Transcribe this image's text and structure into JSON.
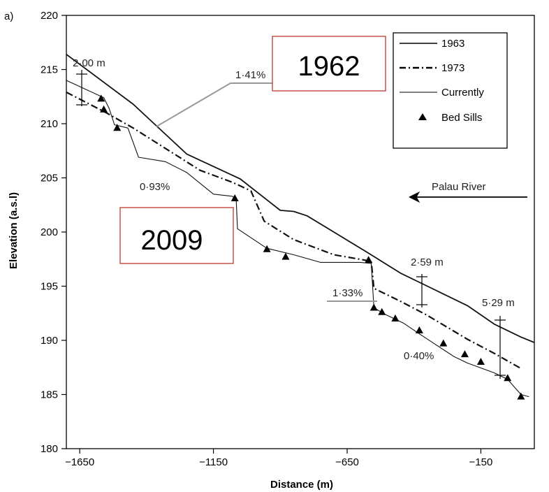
{
  "chart_data": {
    "type": "line",
    "panel_label": "a)",
    "xlabel": "Distance (m)",
    "ylabel": "Elevation (a.s.l)",
    "xlim": [
      -1700,
      50
    ],
    "ylim": [
      180,
      220
    ],
    "xticks": [
      -1650,
      -1150,
      -650,
      -150
    ],
    "xtick_labels": [
      "−1650",
      "−1150",
      "−650",
      "−150"
    ],
    "yticks": [
      180,
      185,
      190,
      195,
      200,
      205,
      210,
      215,
      220
    ],
    "legend": {
      "placement": "top-right",
      "entries": [
        "1963",
        "1973",
        "Currently",
        "Bed Sills"
      ]
    },
    "series": [
      {
        "name": "1963",
        "style": "solid-thick",
        "points": [
          [
            -1700,
            216.4
          ],
          [
            -1450,
            211.8
          ],
          [
            -1250,
            207.2
          ],
          [
            -1050,
            204.9
          ],
          [
            -900,
            202.0
          ],
          [
            -850,
            201.9
          ],
          [
            -800,
            201.5
          ],
          [
            -700,
            200.0
          ],
          [
            -580,
            198.2
          ],
          [
            -450,
            196.2
          ],
          [
            -350,
            195.0
          ],
          [
            -200,
            193.2
          ],
          [
            -100,
            191.5
          ],
          [
            0,
            190.3
          ],
          [
            50,
            189.8
          ]
        ]
      },
      {
        "name": "1973",
        "style": "dash-dot",
        "points": [
          [
            -1700,
            212.9
          ],
          [
            -1550,
            211.0
          ],
          [
            -1450,
            209.6
          ],
          [
            -1200,
            205.7
          ],
          [
            -1080,
            204.6
          ],
          [
            -1010,
            203.8
          ],
          [
            -960,
            201.0
          ],
          [
            -850,
            199.3
          ],
          [
            -700,
            197.9
          ],
          [
            -560,
            197.3
          ],
          [
            -550,
            194.8
          ],
          [
            -450,
            193.6
          ],
          [
            -350,
            192.3
          ],
          [
            -200,
            190.1
          ],
          [
            -100,
            188.8
          ],
          [
            0,
            187.4
          ]
        ]
      },
      {
        "name": "Currently",
        "style": "solid-thin",
        "points": [
          [
            -1700,
            214.0
          ],
          [
            -1560,
            212.4
          ],
          [
            -1540,
            211.4
          ],
          [
            -1520,
            209.9
          ],
          [
            -1470,
            209.6
          ],
          [
            -1430,
            206.9
          ],
          [
            -1330,
            206.5
          ],
          [
            -1250,
            205.5
          ],
          [
            -1150,
            203.5
          ],
          [
            -1080,
            203.3
          ],
          [
            -1065,
            203.1
          ],
          [
            -1060,
            200.3
          ],
          [
            -950,
            198.5
          ],
          [
            -850,
            197.9
          ],
          [
            -750,
            197.2
          ],
          [
            -600,
            197.2
          ],
          [
            -560,
            197.1
          ],
          [
            -550,
            193.0
          ],
          [
            -500,
            192.3
          ],
          [
            -440,
            191.6
          ],
          [
            -380,
            190.6
          ],
          [
            -300,
            189.3
          ],
          [
            -250,
            188.5
          ],
          [
            -200,
            187.9
          ],
          [
            -100,
            187.0
          ],
          [
            -50,
            186.4
          ],
          [
            0,
            185.0
          ],
          [
            30,
            184.8
          ]
        ]
      }
    ],
    "bed_sills": [
      [
        -1570,
        212.3
      ],
      [
        -1560,
        211.3
      ],
      [
        -1510,
        209.6
      ],
      [
        -1070,
        203.1
      ],
      [
        -950,
        198.4
      ],
      [
        -880,
        197.7
      ],
      [
        -570,
        197.4
      ],
      [
        -550,
        193.0
      ],
      [
        -520,
        192.6
      ],
      [
        -470,
        192.0
      ],
      [
        -380,
        190.9
      ],
      [
        -290,
        189.7
      ],
      [
        -210,
        188.7
      ],
      [
        -150,
        188.0
      ],
      [
        -50,
        186.5
      ],
      [
        0,
        184.8
      ]
    ]
  },
  "annotations": {
    "diff_2m": "2·00 m",
    "diff_259": "2·59 m",
    "diff_529": "5·29 m",
    "slope_141": "1·41%",
    "slope_093": "0·93%",
    "slope_133": "1·33%",
    "slope_040": "0·40%",
    "palau_river": "Palau River",
    "label_1962": "1962",
    "label_2009": "2009"
  },
  "colors": {
    "axis": "#000000",
    "line": "#111111",
    "leader": "#999999",
    "box_border": "#c0392b"
  }
}
